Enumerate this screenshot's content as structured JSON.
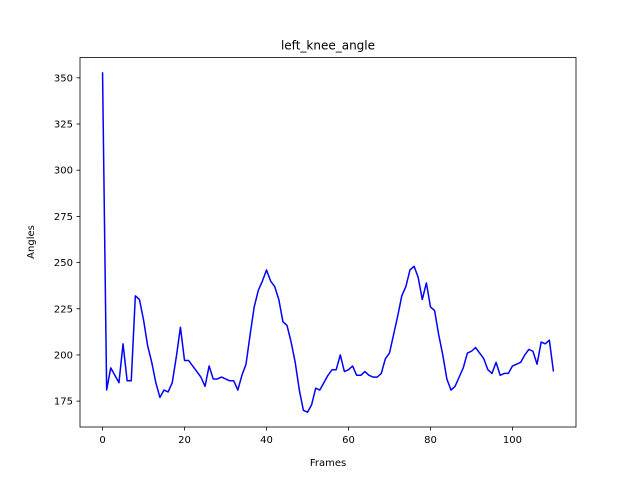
{
  "chart_data": {
    "type": "line",
    "title": "left_knee_angle",
    "xlabel": "Frames",
    "ylabel": "Angles",
    "xlim": [
      -5.5,
      115.5
    ],
    "ylim": [
      161,
      361
    ],
    "xticks": [
      0,
      20,
      40,
      60,
      80,
      100
    ],
    "yticks": [
      175,
      200,
      225,
      250,
      275,
      300,
      325,
      350
    ],
    "grid": false,
    "color": "#0000ff",
    "series": [
      {
        "x": [
          0,
          1,
          2,
          3,
          4,
          5,
          6,
          7,
          8,
          9,
          10,
          11,
          12,
          13,
          14,
          15,
          16,
          17,
          18,
          19,
          20,
          21,
          22,
          23,
          24,
          25,
          26,
          27,
          28,
          29,
          30,
          31,
          32,
          33,
          34,
          35,
          36,
          37,
          38,
          39,
          40,
          41,
          42,
          43,
          44,
          45,
          46,
          47,
          48,
          49,
          50,
          51,
          52,
          53,
          54,
          55,
          56,
          57,
          58,
          59,
          60,
          61,
          62,
          63,
          64,
          65,
          66,
          67,
          68,
          69,
          70,
          71,
          72,
          73,
          74,
          75,
          76,
          77,
          78,
          79,
          80,
          81,
          82,
          83,
          84,
          85,
          86,
          87,
          88,
          89,
          90,
          91,
          92,
          93,
          94,
          95,
          96,
          97,
          98,
          99,
          100,
          101,
          102,
          103,
          104,
          105,
          106,
          107,
          108,
          109,
          110
        ],
        "values": [
          353,
          181,
          193,
          189,
          185,
          206,
          186,
          186,
          232,
          230,
          219,
          205,
          196,
          185,
          177,
          181,
          180,
          185,
          199,
          215,
          197,
          197,
          194,
          191,
          188,
          183,
          194,
          187,
          187,
          188,
          187,
          186,
          186,
          181,
          189,
          195,
          211,
          226,
          235,
          240,
          246,
          240,
          237,
          230,
          218,
          216,
          207,
          196,
          181,
          170,
          169,
          173,
          182,
          181,
          185,
          189,
          192,
          192,
          200,
          191,
          192,
          194,
          189,
          189,
          191,
          189,
          188,
          188,
          190,
          198,
          201,
          211,
          221,
          232,
          237,
          246,
          248,
          242,
          230,
          239,
          226,
          224,
          211,
          200,
          187,
          181,
          183,
          188,
          193,
          201,
          202,
          204,
          201,
          198,
          192,
          190,
          196,
          189,
          190,
          190,
          194,
          195,
          196,
          200,
          203,
          202,
          195,
          207,
          206,
          208,
          191
        ]
      }
    ]
  }
}
